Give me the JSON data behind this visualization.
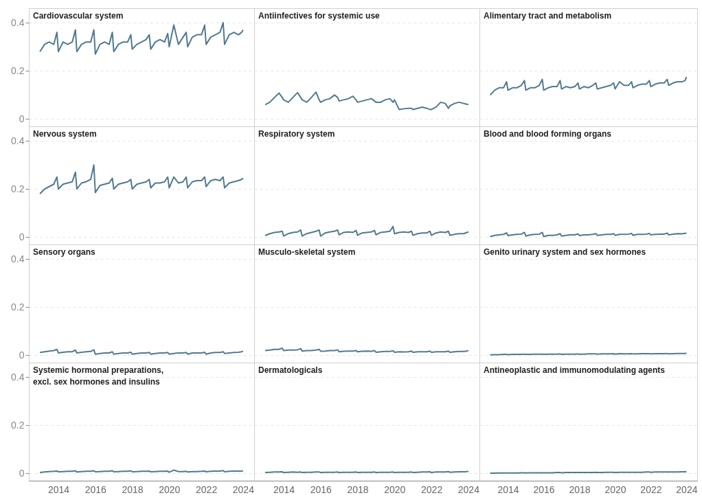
{
  "chart_data": [
    {
      "type": "line",
      "title": "Cardiovascular system",
      "x": [
        2013,
        2013.25,
        2013.5,
        2013.75,
        2013.92,
        2014,
        2014.25,
        2014.5,
        2014.75,
        2014.92,
        2015,
        2015.25,
        2015.5,
        2015.75,
        2015.92,
        2016,
        2016.25,
        2016.5,
        2016.75,
        2016.92,
        2017,
        2017.25,
        2017.5,
        2017.75,
        2017.92,
        2018,
        2018.25,
        2018.5,
        2018.75,
        2018.92,
        2019,
        2019.25,
        2019.5,
        2019.75,
        2019.92,
        2020,
        2020.25,
        2020.5,
        2020.75,
        2020.92,
        2021,
        2021.25,
        2021.5,
        2021.75,
        2021.92,
        2022,
        2022.25,
        2022.5,
        2022.75,
        2022.92,
        2023,
        2023.25,
        2023.5,
        2023.75,
        2023.92,
        2024
      ],
      "values": [
        0.28,
        0.31,
        0.32,
        0.31,
        0.36,
        0.28,
        0.32,
        0.31,
        0.32,
        0.37,
        0.28,
        0.31,
        0.32,
        0.32,
        0.37,
        0.27,
        0.31,
        0.32,
        0.31,
        0.36,
        0.28,
        0.31,
        0.32,
        0.32,
        0.35,
        0.29,
        0.31,
        0.32,
        0.33,
        0.35,
        0.29,
        0.32,
        0.33,
        0.32,
        0.355,
        0.3,
        0.39,
        0.31,
        0.34,
        0.36,
        0.3,
        0.34,
        0.35,
        0.35,
        0.39,
        0.31,
        0.34,
        0.35,
        0.36,
        0.4,
        0.31,
        0.35,
        0.36,
        0.35,
        0.36,
        0.37
      ],
      "color": "#50798f",
      "xlim": [
        2012.4,
        2024.6
      ],
      "ylim": [
        -0.03,
        0.46
      ],
      "xticks": [
        2014,
        2016,
        2018,
        2020,
        2022,
        2024
      ],
      "yticks": [
        0,
        0.2,
        0.4
      ],
      "grid": "y",
      "tick_labels": "y"
    },
    {
      "type": "line",
      "title": "Antiinfectives for systemic use",
      "x": [
        2013,
        2013.25,
        2013.5,
        2013.75,
        2013.92,
        2014,
        2014.25,
        2014.5,
        2014.75,
        2014.92,
        2015,
        2015.25,
        2015.5,
        2015.75,
        2015.92,
        2016,
        2016.25,
        2016.5,
        2016.75,
        2016.92,
        2017,
        2017.25,
        2017.5,
        2017.75,
        2017.92,
        2018,
        2018.25,
        2018.5,
        2018.75,
        2018.92,
        2019,
        2019.25,
        2019.5,
        2019.75,
        2019.92,
        2020,
        2020.25,
        2020.5,
        2020.75,
        2020.92,
        2021,
        2021.25,
        2021.5,
        2021.75,
        2021.92,
        2022,
        2022.25,
        2022.5,
        2022.75,
        2022.92,
        2023,
        2023.25,
        2023.5,
        2023.75,
        2023.92,
        2024
      ],
      "values": [
        0.06,
        0.07,
        0.09,
        0.108,
        0.09,
        0.08,
        0.07,
        0.09,
        0.11,
        0.09,
        0.08,
        0.07,
        0.09,
        0.112,
        0.08,
        0.07,
        0.08,
        0.085,
        0.1,
        0.09,
        0.075,
        0.08,
        0.085,
        0.095,
        0.08,
        0.07,
        0.075,
        0.08,
        0.085,
        0.075,
        0.07,
        0.07,
        0.08,
        0.085,
        0.07,
        0.08,
        0.04,
        0.043,
        0.045,
        0.045,
        0.04,
        0.045,
        0.05,
        0.045,
        0.04,
        0.04,
        0.05,
        0.07,
        0.065,
        0.045,
        0.055,
        0.065,
        0.07,
        0.065,
        0.062,
        0.06
      ],
      "color": "#50798f",
      "xlim": [
        2012.4,
        2024.6
      ],
      "ylim": [
        -0.03,
        0.46
      ],
      "xticks": [
        2014,
        2016,
        2018,
        2020,
        2022,
        2024
      ],
      "yticks": [
        0,
        0.2,
        0.4
      ],
      "grid": "y",
      "tick_labels": false
    },
    {
      "type": "line",
      "title": "Alimentary tract and metabolism",
      "x": [
        2013,
        2013.25,
        2013.5,
        2013.75,
        2013.92,
        2014,
        2014.25,
        2014.5,
        2014.75,
        2014.92,
        2015,
        2015.25,
        2015.5,
        2015.75,
        2015.92,
        2016,
        2016.25,
        2016.5,
        2016.75,
        2016.92,
        2017,
        2017.25,
        2017.5,
        2017.75,
        2017.92,
        2018,
        2018.25,
        2018.5,
        2018.75,
        2018.92,
        2019,
        2019.25,
        2019.5,
        2019.75,
        2019.92,
        2020,
        2020.25,
        2020.5,
        2020.75,
        2020.92,
        2021,
        2021.25,
        2021.5,
        2021.75,
        2021.92,
        2022,
        2022.25,
        2022.5,
        2022.75,
        2022.92,
        2023,
        2023.25,
        2023.5,
        2023.75,
        2023.92,
        2024
      ],
      "values": [
        0.1,
        0.12,
        0.13,
        0.13,
        0.155,
        0.12,
        0.13,
        0.13,
        0.14,
        0.16,
        0.12,
        0.13,
        0.13,
        0.14,
        0.165,
        0.12,
        0.13,
        0.135,
        0.135,
        0.16,
        0.125,
        0.135,
        0.13,
        0.135,
        0.15,
        0.125,
        0.135,
        0.13,
        0.14,
        0.15,
        0.125,
        0.13,
        0.135,
        0.14,
        0.15,
        0.125,
        0.155,
        0.14,
        0.14,
        0.155,
        0.13,
        0.14,
        0.145,
        0.145,
        0.16,
        0.135,
        0.145,
        0.15,
        0.15,
        0.165,
        0.14,
        0.15,
        0.155,
        0.155,
        0.16,
        0.175
      ],
      "color": "#50798f",
      "xlim": [
        2012.4,
        2024.6
      ],
      "ylim": [
        -0.03,
        0.46
      ],
      "xticks": [
        2014,
        2016,
        2018,
        2020,
        2022,
        2024
      ],
      "yticks": [
        0,
        0.2,
        0.4
      ],
      "grid": "y",
      "tick_labels": false
    },
    {
      "type": "line",
      "title": "Nervous system",
      "x": [
        2013,
        2013.25,
        2013.5,
        2013.75,
        2013.92,
        2014,
        2014.25,
        2014.5,
        2014.75,
        2014.92,
        2015,
        2015.25,
        2015.5,
        2015.75,
        2015.92,
        2016,
        2016.25,
        2016.5,
        2016.75,
        2016.92,
        2017,
        2017.25,
        2017.5,
        2017.75,
        2017.92,
        2018,
        2018.25,
        2018.5,
        2018.75,
        2018.92,
        2019,
        2019.25,
        2019.5,
        2019.75,
        2019.92,
        2020,
        2020.25,
        2020.5,
        2020.75,
        2020.92,
        2021,
        2021.25,
        2021.5,
        2021.75,
        2021.92,
        2022,
        2022.25,
        2022.5,
        2022.75,
        2022.92,
        2023,
        2023.25,
        2023.5,
        2023.75,
        2023.92,
        2024
      ],
      "values": [
        0.18,
        0.2,
        0.21,
        0.22,
        0.25,
        0.2,
        0.22,
        0.225,
        0.23,
        0.27,
        0.2,
        0.225,
        0.23,
        0.24,
        0.3,
        0.185,
        0.215,
        0.22,
        0.225,
        0.245,
        0.2,
        0.22,
        0.225,
        0.23,
        0.24,
        0.2,
        0.22,
        0.225,
        0.23,
        0.24,
        0.205,
        0.225,
        0.225,
        0.23,
        0.25,
        0.205,
        0.25,
        0.225,
        0.23,
        0.25,
        0.205,
        0.23,
        0.235,
        0.235,
        0.25,
        0.21,
        0.235,
        0.24,
        0.235,
        0.25,
        0.205,
        0.225,
        0.23,
        0.235,
        0.24,
        0.245
      ],
      "color": "#50798f",
      "xlim": [
        2012.4,
        2024.6
      ],
      "ylim": [
        -0.03,
        0.46
      ],
      "xticks": [
        2014,
        2016,
        2018,
        2020,
        2022,
        2024
      ],
      "yticks": [
        0,
        0.2,
        0.4
      ],
      "grid": "y",
      "tick_labels": "y"
    },
    {
      "type": "line",
      "title": "Respiratory system",
      "x": [
        2013,
        2013.25,
        2013.5,
        2013.75,
        2013.92,
        2014,
        2014.25,
        2014.5,
        2014.75,
        2014.92,
        2015,
        2015.25,
        2015.5,
        2015.75,
        2015.92,
        2016,
        2016.25,
        2016.5,
        2016.75,
        2016.92,
        2017,
        2017.25,
        2017.5,
        2017.75,
        2017.92,
        2018,
        2018.25,
        2018.5,
        2018.75,
        2018.92,
        2019,
        2019.25,
        2019.5,
        2019.75,
        2019.92,
        2020,
        2020.25,
        2020.5,
        2020.75,
        2020.92,
        2021,
        2021.25,
        2021.5,
        2021.75,
        2021.92,
        2022,
        2022.25,
        2022.5,
        2022.75,
        2022.92,
        2023,
        2023.25,
        2023.5,
        2023.75,
        2023.92,
        2024
      ],
      "values": [
        0.007,
        0.015,
        0.02,
        0.022,
        0.025,
        0.005,
        0.015,
        0.02,
        0.022,
        0.03,
        0.005,
        0.015,
        0.02,
        0.025,
        0.03,
        0.005,
        0.018,
        0.022,
        0.025,
        0.03,
        0.01,
        0.02,
        0.022,
        0.02,
        0.028,
        0.008,
        0.018,
        0.02,
        0.022,
        0.028,
        0.01,
        0.02,
        0.022,
        0.025,
        0.045,
        0.015,
        0.02,
        0.022,
        0.02,
        0.025,
        0.008,
        0.015,
        0.018,
        0.018,
        0.025,
        0.008,
        0.018,
        0.022,
        0.02,
        0.025,
        0.008,
        0.012,
        0.015,
        0.015,
        0.02,
        0.022
      ],
      "color": "#50798f",
      "xlim": [
        2012.4,
        2024.6
      ],
      "ylim": [
        -0.03,
        0.46
      ],
      "xticks": [
        2014,
        2016,
        2018,
        2020,
        2022,
        2024
      ],
      "yticks": [
        0,
        0.2,
        0.4
      ],
      "grid": "y",
      "tick_labels": false
    },
    {
      "type": "line",
      "title": "Blood and blood forming organs",
      "x": [
        2013,
        2013.25,
        2013.5,
        2013.75,
        2013.92,
        2014,
        2014.25,
        2014.5,
        2014.75,
        2014.92,
        2015,
        2015.25,
        2015.5,
        2015.75,
        2015.92,
        2016,
        2016.25,
        2016.5,
        2016.75,
        2016.92,
        2017,
        2017.25,
        2017.5,
        2017.75,
        2017.92,
        2018,
        2018.25,
        2018.5,
        2018.75,
        2018.92,
        2019,
        2019.25,
        2019.5,
        2019.75,
        2019.92,
        2020,
        2020.25,
        2020.5,
        2020.75,
        2020.92,
        2021,
        2021.25,
        2021.5,
        2021.75,
        2021.92,
        2022,
        2022.25,
        2022.5,
        2022.75,
        2022.92,
        2023,
        2023.25,
        2023.5,
        2023.75,
        2023.92,
        2024
      ],
      "values": [
        0.003,
        0.008,
        0.01,
        0.012,
        0.018,
        0.007,
        0.01,
        0.012,
        0.013,
        0.02,
        0.005,
        0.01,
        0.012,
        0.013,
        0.02,
        0.003,
        0.008,
        0.008,
        0.01,
        0.015,
        0.005,
        0.008,
        0.01,
        0.01,
        0.014,
        0.007,
        0.01,
        0.01,
        0.012,
        0.015,
        0.008,
        0.01,
        0.012,
        0.012,
        0.015,
        0.008,
        0.012,
        0.012,
        0.013,
        0.016,
        0.008,
        0.012,
        0.012,
        0.013,
        0.016,
        0.01,
        0.012,
        0.013,
        0.013,
        0.017,
        0.01,
        0.013,
        0.015,
        0.014,
        0.016,
        0.017
      ],
      "color": "#50798f",
      "xlim": [
        2012.4,
        2024.6
      ],
      "ylim": [
        -0.03,
        0.46
      ],
      "xticks": [
        2014,
        2016,
        2018,
        2020,
        2022,
        2024
      ],
      "yticks": [
        0,
        0.2,
        0.4
      ],
      "grid": "y",
      "tick_labels": false
    },
    {
      "type": "line",
      "title": "Sensory organs",
      "x": [
        2013,
        2013.25,
        2013.5,
        2013.75,
        2013.92,
        2014,
        2014.25,
        2014.5,
        2014.75,
        2014.92,
        2015,
        2015.25,
        2015.5,
        2015.75,
        2015.92,
        2016,
        2016.25,
        2016.5,
        2016.75,
        2016.92,
        2017,
        2017.25,
        2017.5,
        2017.75,
        2017.92,
        2018,
        2018.25,
        2018.5,
        2018.75,
        2018.92,
        2019,
        2019.25,
        2019.5,
        2019.75,
        2019.92,
        2020,
        2020.25,
        2020.5,
        2020.75,
        2020.92,
        2021,
        2021.25,
        2021.5,
        2021.75,
        2021.92,
        2022,
        2022.25,
        2022.5,
        2022.75,
        2022.92,
        2023,
        2023.25,
        2023.5,
        2023.75,
        2023.92,
        2024
      ],
      "values": [
        0.012,
        0.015,
        0.018,
        0.02,
        0.025,
        0.01,
        0.013,
        0.015,
        0.015,
        0.022,
        0.01,
        0.013,
        0.015,
        0.016,
        0.023,
        0.005,
        0.008,
        0.01,
        0.01,
        0.015,
        0.005,
        0.008,
        0.01,
        0.01,
        0.013,
        0.005,
        0.008,
        0.01,
        0.01,
        0.012,
        0.005,
        0.008,
        0.01,
        0.01,
        0.012,
        0.005,
        0.008,
        0.01,
        0.01,
        0.012,
        0.005,
        0.01,
        0.01,
        0.01,
        0.013,
        0.005,
        0.01,
        0.012,
        0.012,
        0.015,
        0.008,
        0.01,
        0.012,
        0.013,
        0.015,
        0.018
      ],
      "color": "#50798f",
      "xlim": [
        2012.4,
        2024.6
      ],
      "ylim": [
        -0.03,
        0.46
      ],
      "xticks": [
        2014,
        2016,
        2018,
        2020,
        2022,
        2024
      ],
      "yticks": [
        0,
        0.2,
        0.4
      ],
      "grid": "y",
      "tick_labels": "y"
    },
    {
      "type": "line",
      "title": "Musculo-skeletal system",
      "x": [
        2013,
        2013.25,
        2013.5,
        2013.75,
        2013.92,
        2014,
        2014.25,
        2014.5,
        2014.75,
        2014.92,
        2015,
        2015.25,
        2015.5,
        2015.75,
        2015.92,
        2016,
        2016.25,
        2016.5,
        2016.75,
        2016.92,
        2017,
        2017.25,
        2017.5,
        2017.75,
        2017.92,
        2018,
        2018.25,
        2018.5,
        2018.75,
        2018.92,
        2019,
        2019.25,
        2019.5,
        2019.75,
        2019.92,
        2020,
        2020.25,
        2020.5,
        2020.75,
        2020.92,
        2021,
        2021.25,
        2021.5,
        2021.75,
        2021.92,
        2022,
        2022.25,
        2022.5,
        2022.75,
        2022.92,
        2023,
        2023.25,
        2023.5,
        2023.75,
        2023.92,
        2024
      ],
      "values": [
        0.02,
        0.022,
        0.025,
        0.025,
        0.03,
        0.02,
        0.022,
        0.022,
        0.023,
        0.028,
        0.018,
        0.02,
        0.02,
        0.022,
        0.025,
        0.017,
        0.018,
        0.02,
        0.02,
        0.023,
        0.015,
        0.017,
        0.018,
        0.018,
        0.02,
        0.015,
        0.017,
        0.018,
        0.017,
        0.02,
        0.013,
        0.015,
        0.016,
        0.016,
        0.019,
        0.013,
        0.015,
        0.014,
        0.015,
        0.018,
        0.013,
        0.015,
        0.015,
        0.015,
        0.018,
        0.013,
        0.015,
        0.015,
        0.015,
        0.018,
        0.013,
        0.015,
        0.016,
        0.016,
        0.018,
        0.02
      ],
      "color": "#50798f",
      "xlim": [
        2012.4,
        2024.6
      ],
      "ylim": [
        -0.03,
        0.46
      ],
      "xticks": [
        2014,
        2016,
        2018,
        2020,
        2022,
        2024
      ],
      "yticks": [
        0,
        0.2,
        0.4
      ],
      "grid": "y",
      "tick_labels": false
    },
    {
      "type": "line",
      "title": "Genito urinary system and sex hormones",
      "x": [
        2013,
        2013.25,
        2013.5,
        2013.75,
        2013.92,
        2014,
        2014.25,
        2014.5,
        2014.75,
        2014.92,
        2015,
        2015.25,
        2015.5,
        2015.75,
        2015.92,
        2016,
        2016.25,
        2016.5,
        2016.75,
        2016.92,
        2017,
        2017.25,
        2017.5,
        2017.75,
        2017.92,
        2018,
        2018.25,
        2018.5,
        2018.75,
        2018.92,
        2019,
        2019.25,
        2019.5,
        2019.75,
        2019.92,
        2020,
        2020.25,
        2020.5,
        2020.75,
        2020.92,
        2021,
        2021.25,
        2021.5,
        2021.75,
        2021.92,
        2022,
        2022.25,
        2022.5,
        2022.75,
        2022.92,
        2023,
        2023.25,
        2023.5,
        2023.75,
        2023.92,
        2024
      ],
      "values": [
        0.002,
        0.003,
        0.003,
        0.004,
        0.004,
        0.003,
        0.004,
        0.004,
        0.004,
        0.005,
        0.004,
        0.004,
        0.005,
        0.005,
        0.005,
        0.004,
        0.005,
        0.005,
        0.005,
        0.006,
        0.004,
        0.005,
        0.005,
        0.005,
        0.006,
        0.005,
        0.005,
        0.006,
        0.006,
        0.006,
        0.005,
        0.006,
        0.006,
        0.006,
        0.007,
        0.005,
        0.007,
        0.006,
        0.006,
        0.007,
        0.006,
        0.006,
        0.007,
        0.007,
        0.007,
        0.006,
        0.007,
        0.007,
        0.007,
        0.008,
        0.006,
        0.007,
        0.008,
        0.008,
        0.008,
        0.009
      ],
      "color": "#50798f",
      "xlim": [
        2012.4,
        2024.6
      ],
      "ylim": [
        -0.03,
        0.46
      ],
      "xticks": [
        2014,
        2016,
        2018,
        2020,
        2022,
        2024
      ],
      "yticks": [
        0,
        0.2,
        0.4
      ],
      "grid": "y",
      "tick_labels": false
    },
    {
      "type": "line",
      "title": "Systemic hormonal preparations, excl. sex hormones and insulins",
      "x": [
        2013,
        2013.25,
        2013.5,
        2013.75,
        2013.92,
        2014,
        2014.25,
        2014.5,
        2014.75,
        2014.92,
        2015,
        2015.25,
        2015.5,
        2015.75,
        2015.92,
        2016,
        2016.25,
        2016.5,
        2016.75,
        2016.92,
        2017,
        2017.25,
        2017.5,
        2017.75,
        2017.92,
        2018,
        2018.25,
        2018.5,
        2018.75,
        2018.92,
        2019,
        2019.25,
        2019.5,
        2019.75,
        2019.92,
        2020,
        2020.25,
        2020.5,
        2020.75,
        2020.92,
        2021,
        2021.25,
        2021.5,
        2021.75,
        2021.92,
        2022,
        2022.25,
        2022.5,
        2022.75,
        2022.92,
        2023,
        2023.25,
        2023.5,
        2023.75,
        2023.92,
        2024
      ],
      "values": [
        0.004,
        0.006,
        0.008,
        0.009,
        0.01,
        0.007,
        0.008,
        0.009,
        0.009,
        0.011,
        0.006,
        0.008,
        0.009,
        0.009,
        0.011,
        0.007,
        0.008,
        0.009,
        0.009,
        0.011,
        0.007,
        0.008,
        0.009,
        0.009,
        0.011,
        0.007,
        0.008,
        0.009,
        0.009,
        0.01,
        0.007,
        0.008,
        0.009,
        0.009,
        0.01,
        0.005,
        0.014,
        0.008,
        0.008,
        0.009,
        0.006,
        0.008,
        0.008,
        0.009,
        0.01,
        0.007,
        0.009,
        0.01,
        0.01,
        0.012,
        0.007,
        0.009,
        0.01,
        0.01,
        0.01,
        0.011
      ],
      "color": "#50798f",
      "xlim": [
        2012.4,
        2024.6
      ],
      "ylim": [
        -0.03,
        0.46
      ],
      "xticks": [
        2014,
        2016,
        2018,
        2020,
        2022,
        2024
      ],
      "yticks": [
        0,
        0.2,
        0.4
      ],
      "grid": "y"
    },
    {
      "type": "line",
      "title": "Dermatologicals",
      "x": [
        2013,
        2013.25,
        2013.5,
        2013.75,
        2013.92,
        2014,
        2014.25,
        2014.5,
        2014.75,
        2014.92,
        2015,
        2015.25,
        2015.5,
        2015.75,
        2015.92,
        2016,
        2016.25,
        2016.5,
        2016.75,
        2016.92,
        2017,
        2017.25,
        2017.5,
        2017.75,
        2017.92,
        2018,
        2018.25,
        2018.5,
        2018.75,
        2018.92,
        2019,
        2019.25,
        2019.5,
        2019.75,
        2019.92,
        2020,
        2020.25,
        2020.5,
        2020.75,
        2020.92,
        2021,
        2021.25,
        2021.5,
        2021.75,
        2021.92,
        2022,
        2022.25,
        2022.5,
        2022.75,
        2022.92,
        2023,
        2023.25,
        2023.5,
        2023.75,
        2023.92,
        2024
      ],
      "values": [
        0.004,
        0.005,
        0.006,
        0.006,
        0.007,
        0.004,
        0.005,
        0.006,
        0.005,
        0.006,
        0.004,
        0.005,
        0.005,
        0.006,
        0.006,
        0.004,
        0.005,
        0.005,
        0.005,
        0.006,
        0.004,
        0.005,
        0.005,
        0.005,
        0.006,
        0.004,
        0.005,
        0.005,
        0.005,
        0.006,
        0.004,
        0.005,
        0.005,
        0.005,
        0.006,
        0.004,
        0.005,
        0.005,
        0.005,
        0.006,
        0.004,
        0.005,
        0.006,
        0.006,
        0.007,
        0.004,
        0.006,
        0.006,
        0.006,
        0.008,
        0.005,
        0.006,
        0.007,
        0.007,
        0.008,
        0.009
      ],
      "color": "#50798f",
      "xlim": [
        2012.4,
        2024.6
      ],
      "ylim": [
        -0.03,
        0.46
      ],
      "xticks": [
        2014,
        2016,
        2018,
        2020,
        2022,
        2024
      ],
      "yticks": [
        0,
        0.2,
        0.4
      ],
      "grid": "y",
      "tick_labels": "x"
    },
    {
      "type": "line",
      "title": "Antineoplastic and immunomodulating agents",
      "x": [
        2013,
        2013.25,
        2013.5,
        2013.75,
        2013.92,
        2014,
        2014.25,
        2014.5,
        2014.75,
        2014.92,
        2015,
        2015.25,
        2015.5,
        2015.75,
        2015.92,
        2016,
        2016.25,
        2016.5,
        2016.75,
        2016.92,
        2017,
        2017.25,
        2017.5,
        2017.75,
        2017.92,
        2018,
        2018.25,
        2018.5,
        2018.75,
        2018.92,
        2019,
        2019.25,
        2019.5,
        2019.75,
        2019.92,
        2020,
        2020.25,
        2020.5,
        2020.75,
        2020.92,
        2021,
        2021.25,
        2021.5,
        2021.75,
        2021.92,
        2022,
        2022.25,
        2022.5,
        2022.75,
        2022.92,
        2023,
        2023.25,
        2023.5,
        2023.75,
        2023.92,
        2024
      ],
      "values": [
        0.001,
        0.001,
        0.002,
        0.002,
        0.002,
        0.002,
        0.002,
        0.002,
        0.003,
        0.003,
        0.002,
        0.003,
        0.003,
        0.003,
        0.003,
        0.003,
        0.003,
        0.003,
        0.004,
        0.004,
        0.003,
        0.004,
        0.004,
        0.004,
        0.004,
        0.004,
        0.004,
        0.004,
        0.004,
        0.005,
        0.004,
        0.004,
        0.005,
        0.005,
        0.005,
        0.004,
        0.005,
        0.005,
        0.005,
        0.005,
        0.005,
        0.005,
        0.005,
        0.006,
        0.006,
        0.005,
        0.006,
        0.006,
        0.006,
        0.006,
        0.006,
        0.006,
        0.006,
        0.007,
        0.007,
        0.007
      ],
      "color": "#50798f",
      "xlim": [
        2012.4,
        2024.6
      ],
      "ylim": [
        -0.03,
        0.46
      ],
      "xticks": [
        2014,
        2016,
        2018,
        2020,
        2022,
        2024
      ],
      "yticks": [
        0,
        0.2,
        0.4
      ],
      "grid": "y",
      "tick_labels": "x"
    }
  ]
}
